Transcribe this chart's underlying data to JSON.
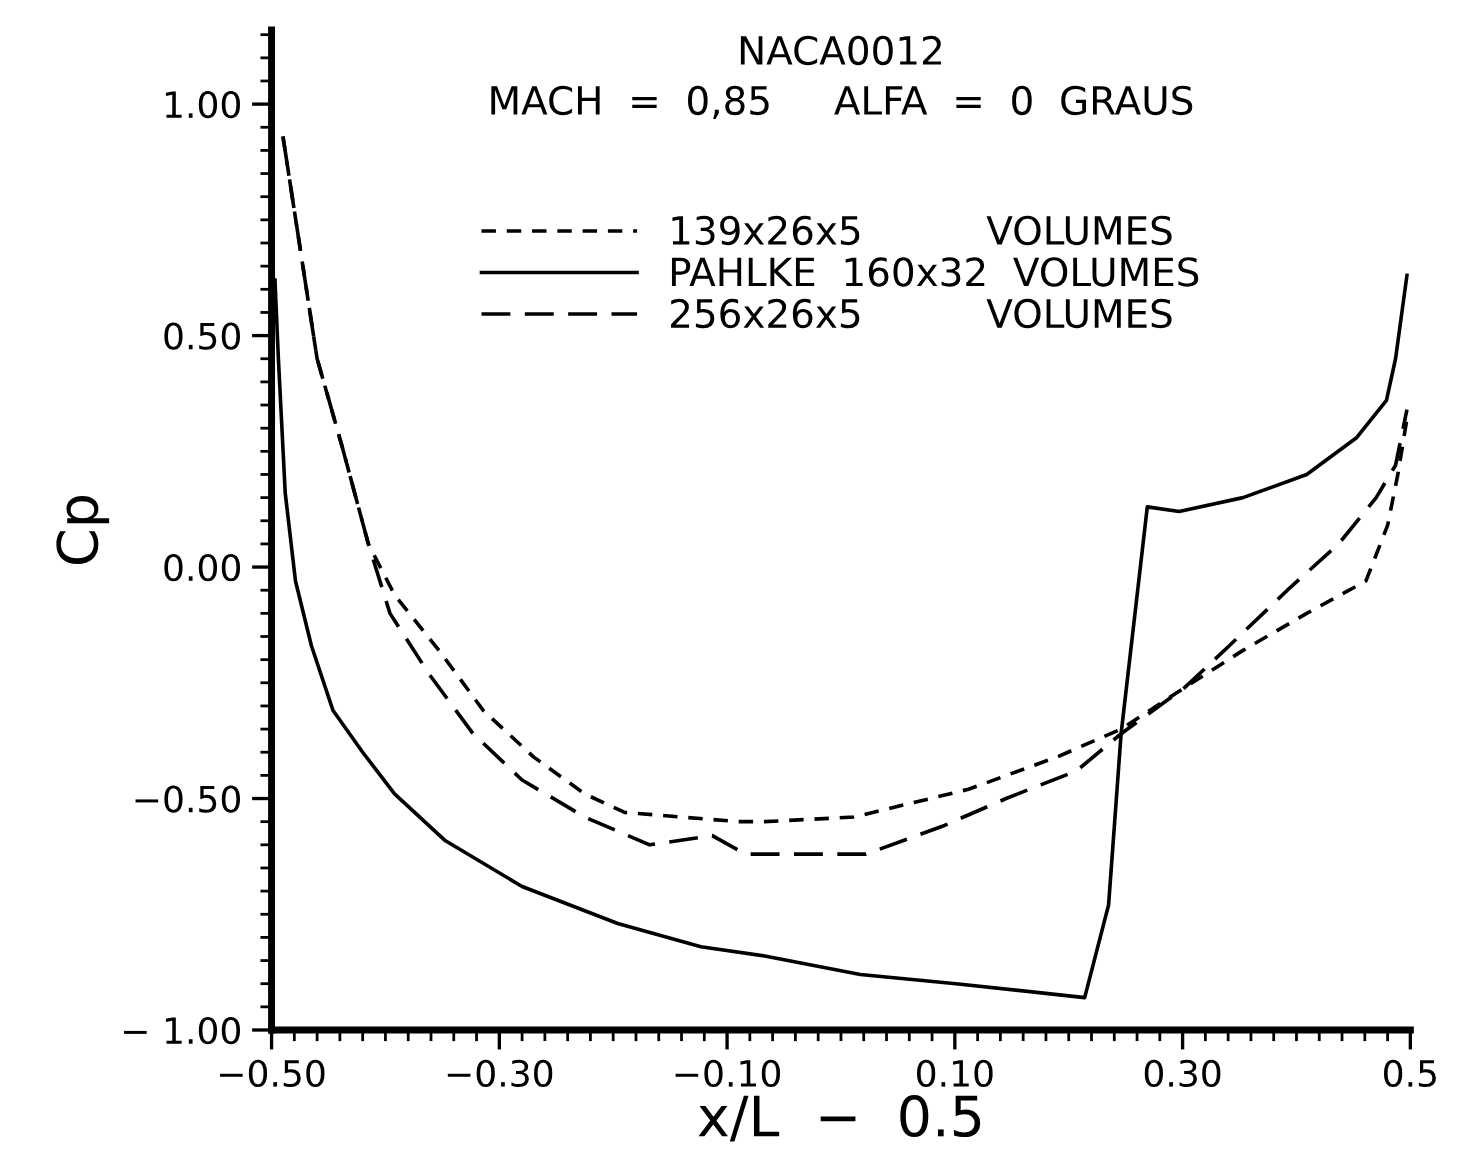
{
  "chart_data": {
    "type": "line",
    "title": "NACA0012",
    "subtitle": "MACH  =  0,85     ALFA  =  0  GRAUS",
    "xlabel": "x/L  −  0.5",
    "ylabel": "Cp",
    "xlim": [
      -0.5,
      0.5
    ],
    "ylim": [
      -1.0,
      1.16
    ],
    "xticks": [
      {
        "value": -0.5,
        "label": "−0.50"
      },
      {
        "value": -0.3,
        "label": "−0.30"
      },
      {
        "value": -0.1,
        "label": "−0.10"
      },
      {
        "value": 0.1,
        "label": "0.10"
      },
      {
        "value": 0.3,
        "label": "0.30"
      },
      {
        "value": 0.5,
        "label": "0.5"
      }
    ],
    "yticks": [
      {
        "value": -1.0,
        "label": "− 1.00"
      },
      {
        "value": -0.5,
        "label": "−0.50"
      },
      {
        "value": 0.0,
        "label": "0.00"
      },
      {
        "value": 0.5,
        "label": "0.50"
      },
      {
        "value": 1.0,
        "label": "1.00"
      }
    ],
    "grid": false,
    "legend": "top",
    "marker": "none",
    "series": [
      {
        "name": "139x26x5          VOLUMES",
        "color": "#000000",
        "line_style": "dashed",
        "x": [
          -0.49,
          -0.46,
          -0.438,
          -0.415,
          -0.392,
          -0.353,
          -0.314,
          -0.27,
          -0.225,
          -0.19,
          -0.14,
          -0.09,
          -0.067,
          0.011,
          0.045,
          0.112,
          0.19,
          0.246,
          0.302,
          0.353,
          0.409,
          0.461,
          0.48,
          0.489,
          0.497
        ],
        "values": [
          0.93,
          0.45,
          0.26,
          0.05,
          -0.06,
          -0.18,
          -0.31,
          -0.41,
          -0.49,
          -0.53,
          -0.54,
          -0.55,
          -0.55,
          -0.54,
          -0.52,
          -0.48,
          -0.41,
          -0.35,
          -0.26,
          -0.18,
          -0.1,
          -0.03,
          0.09,
          0.2,
          0.32
        ]
      },
      {
        "name": "PAHLKE  160x32  VOLUMES",
        "color": "#000000",
        "line_style": "solid",
        "x": [
          -0.497,
          -0.494,
          -0.488,
          -0.479,
          -0.465,
          -0.446,
          -0.42,
          -0.392,
          -0.348,
          -0.28,
          -0.196,
          -0.123,
          -0.067,
          0.017,
          0.101,
          0.214,
          0.235,
          0.246,
          0.269,
          0.297,
          0.353,
          0.409,
          0.453,
          0.479,
          0.487,
          0.497
        ],
        "values": [
          0.62,
          0.45,
          0.16,
          -0.03,
          -0.17,
          -0.31,
          -0.4,
          -0.49,
          -0.59,
          -0.69,
          -0.77,
          -0.82,
          -0.84,
          -0.88,
          -0.9,
          -0.93,
          -0.73,
          -0.36,
          0.13,
          0.12,
          0.15,
          0.2,
          0.28,
          0.36,
          0.45,
          0.63
        ]
      },
      {
        "name": "256x26x5          VOLUMES",
        "color": "#000000",
        "line_style": "dashed",
        "x": [
          -0.49,
          -0.46,
          -0.438,
          -0.415,
          -0.396,
          -0.362,
          -0.323,
          -0.28,
          -0.225,
          -0.168,
          -0.113,
          -0.084,
          -0.039,
          0.022,
          0.089,
          0.145,
          0.207,
          0.246,
          0.302,
          0.341,
          0.392,
          0.437,
          0.47,
          0.487,
          0.497
        ],
        "values": [
          0.93,
          0.45,
          0.26,
          0.05,
          -0.1,
          -0.23,
          -0.36,
          -0.46,
          -0.54,
          -0.6,
          -0.58,
          -0.62,
          -0.62,
          -0.62,
          -0.56,
          -0.5,
          -0.44,
          -0.36,
          -0.26,
          -0.17,
          -0.05,
          0.05,
          0.15,
          0.22,
          0.34
        ]
      }
    ]
  }
}
